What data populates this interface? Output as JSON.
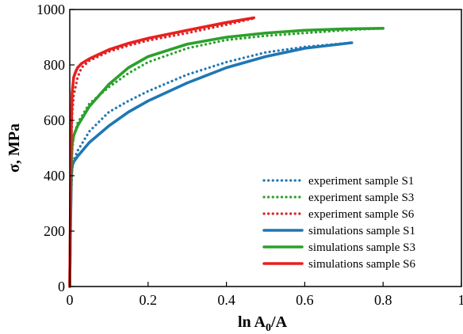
{
  "chart_data": {
    "type": "line",
    "title": "",
    "xlabel": "ln A",
    "xlabel_subscript": "0",
    "xlabel_suffix": "/A",
    "ylabel": "σ, MPa",
    "xlim": [
      0,
      1
    ],
    "ylim": [
      0,
      1000
    ],
    "x_ticks": [
      0,
      0.2,
      0.4,
      0.6,
      0.8,
      1
    ],
    "x_tick_labels": [
      "0",
      "0.2",
      "0.4",
      "0.6",
      "0.8",
      "1"
    ],
    "y_ticks": [
      0,
      200,
      400,
      600,
      800,
      1000
    ],
    "y_tick_labels": [
      "0",
      "200",
      "400",
      "600",
      "800",
      "1000"
    ],
    "grid": false,
    "legend_position": "bottom-right",
    "series": [
      {
        "name": "experiment sample S1",
        "style": "dotted",
        "color": "#1f77b4",
        "x": [
          0,
          0.002,
          0.004,
          0.006,
          0.01,
          0.02,
          0.05,
          0.1,
          0.15,
          0.2,
          0.3,
          0.4,
          0.5,
          0.6,
          0.72
        ],
        "y": [
          0,
          200,
          350,
          420,
          455,
          490,
          560,
          630,
          670,
          705,
          765,
          810,
          845,
          865,
          880
        ]
      },
      {
        "name": "experiment sample S3",
        "style": "dotted",
        "color": "#2ca02c",
        "x": [
          0,
          0.002,
          0.004,
          0.006,
          0.01,
          0.02,
          0.05,
          0.1,
          0.15,
          0.2,
          0.3,
          0.4,
          0.5,
          0.6,
          0.7,
          0.8
        ],
        "y": [
          0,
          250,
          420,
          490,
          540,
          590,
          660,
          720,
          770,
          810,
          860,
          890,
          905,
          915,
          925,
          932
        ]
      },
      {
        "name": "experiment sample S6",
        "style": "dotted",
        "color": "#d62728",
        "x": [
          0,
          0.002,
          0.004,
          0.006,
          0.01,
          0.02,
          0.03,
          0.05,
          0.1,
          0.15,
          0.2,
          0.3,
          0.4,
          0.47
        ],
        "y": [
          0,
          300,
          520,
          620,
          690,
          755,
          790,
          815,
          848,
          870,
          888,
          915,
          945,
          968
        ]
      },
      {
        "name": "simulations sample S1",
        "style": "solid",
        "color": "#1f77b4",
        "x": [
          0,
          0.002,
          0.004,
          0.006,
          0.01,
          0.02,
          0.05,
          0.1,
          0.15,
          0.2,
          0.3,
          0.4,
          0.5,
          0.6,
          0.72
        ],
        "y": [
          0,
          230,
          390,
          435,
          450,
          470,
          520,
          580,
          630,
          670,
          735,
          790,
          830,
          860,
          880
        ]
      },
      {
        "name": "simulations sample S3",
        "style": "solid",
        "color": "#2ca02c",
        "x": [
          0,
          0.002,
          0.004,
          0.006,
          0.01,
          0.02,
          0.05,
          0.1,
          0.15,
          0.2,
          0.3,
          0.4,
          0.5,
          0.6,
          0.7,
          0.8
        ],
        "y": [
          0,
          260,
          440,
          510,
          545,
          580,
          650,
          730,
          790,
          830,
          875,
          900,
          915,
          925,
          930,
          932
        ]
      },
      {
        "name": "simulations sample S6",
        "style": "solid",
        "color": "#e8201e",
        "x": [
          0,
          0.002,
          0.004,
          0.006,
          0.01,
          0.015,
          0.02,
          0.03,
          0.05,
          0.1,
          0.15,
          0.2,
          0.3,
          0.4,
          0.47
        ],
        "y": [
          0,
          320,
          580,
          700,
          755,
          775,
          790,
          805,
          822,
          855,
          878,
          896,
          925,
          953,
          970
        ]
      }
    ]
  }
}
